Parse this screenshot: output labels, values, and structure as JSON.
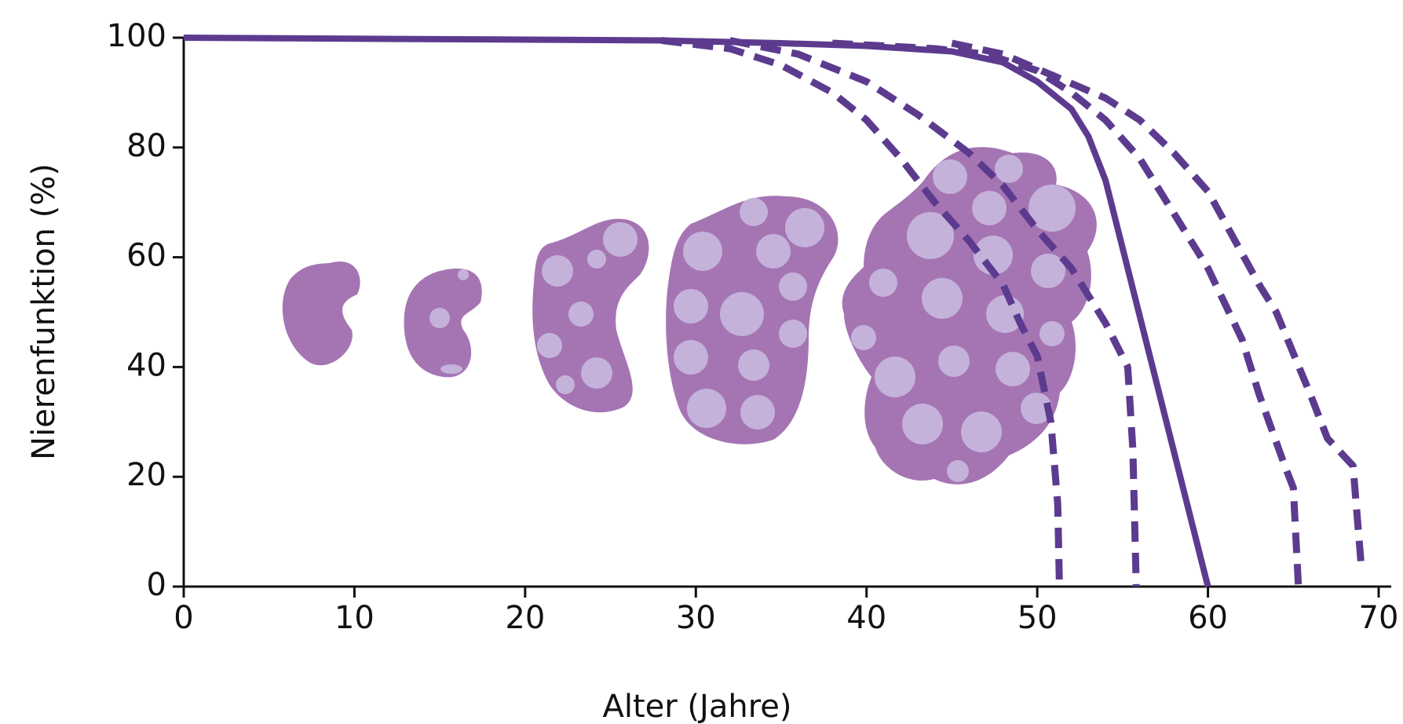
{
  "chart_data": {
    "type": "line",
    "x_label": "Alter (Jahre)",
    "y_label": "Nierenfunktion  (%)",
    "xlim": [
      0,
      70
    ],
    "ylim": [
      0,
      100
    ],
    "xticks": [
      0,
      10,
      20,
      30,
      40,
      50,
      60,
      70
    ],
    "yticks": [
      0,
      20,
      40,
      60,
      80,
      100
    ],
    "grid": false,
    "series": [
      {
        "color": "#5c3b8f",
        "style": "solid",
        "x": [
          0,
          28,
          35,
          40,
          45,
          48,
          50,
          52,
          53,
          54,
          60
        ],
        "values": [
          100,
          99.5,
          99,
          98.5,
          97.5,
          95.5,
          92,
          87,
          82,
          74,
          0
        ]
      },
      {
        "color": "#5c3b8f",
        "style": "dashed",
        "x": [
          28,
          32,
          35,
          38,
          40,
          42,
          44,
          46,
          48,
          49,
          50,
          50.8,
          51.2,
          51.3
        ],
        "values": [
          99.5,
          98,
          95,
          90,
          85,
          78,
          70,
          63,
          55,
          48,
          42,
          30,
          15,
          0
        ]
      },
      {
        "color": "#5c3b8f",
        "style": "dashed",
        "x": [
          32,
          36,
          40,
          43,
          46,
          48,
          50,
          52,
          54,
          55.3,
          55.6,
          55.8
        ],
        "values": [
          99.5,
          97,
          92,
          86,
          79,
          73,
          65,
          58,
          48,
          40,
          25,
          0
        ]
      },
      {
        "color": "#5c3b8f",
        "style": "dashed",
        "x": [
          38,
          44,
          47,
          50,
          52,
          54,
          56,
          58,
          60,
          62,
          63,
          64.5,
          65,
          65.3
        ],
        "values": [
          99,
          98,
          97,
          94,
          90,
          85,
          78,
          68,
          58,
          45,
          35,
          22,
          18,
          0
        ]
      },
      {
        "color": "#5c3b8f",
        "style": "dashed",
        "x": [
          45,
          48,
          51,
          54,
          56,
          58,
          60,
          63,
          64,
          66,
          67,
          68.5,
          69
        ],
        "values": [
          99,
          97,
          93,
          89,
          85,
          79,
          72,
          55,
          50,
          35,
          27,
          22,
          3
        ]
      }
    ]
  }
}
